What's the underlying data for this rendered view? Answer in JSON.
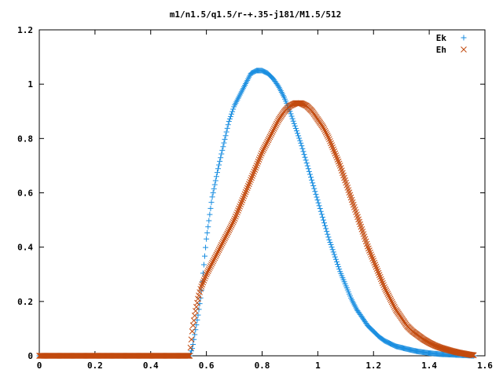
{
  "chart_data": {
    "type": "scatter",
    "title": "m1/n1.5/q1.5/r-+.35-j181/M1.5/512",
    "xlabel": "",
    "ylabel": "",
    "xlim": [
      0,
      1.6
    ],
    "ylim": [
      0,
      1.2
    ],
    "x_ticks": [
      "0",
      "0.2",
      "0.4",
      "0.6",
      "0.8",
      "1",
      "1.2",
      "1.4",
      "1.6"
    ],
    "y_ticks": [
      "0",
      "0.2",
      "0.4",
      "0.6",
      "0.8",
      "1",
      "1.2"
    ],
    "grid": false,
    "legend_position": "top-right",
    "series": [
      {
        "name": "Ek",
        "marker": "plus",
        "color": "#1a8ee0",
        "x": [
          0,
          0.05,
          0.1,
          0.15,
          0.2,
          0.25,
          0.3,
          0.35,
          0.4,
          0.45,
          0.5,
          0.54,
          0.55,
          0.56,
          0.57,
          0.58,
          0.6,
          0.62,
          0.64,
          0.66,
          0.68,
          0.7,
          0.72,
          0.74,
          0.76,
          0.78,
          0.8,
          0.82,
          0.84,
          0.86,
          0.88,
          0.9,
          0.92,
          0.94,
          0.96,
          0.98,
          1.0,
          1.02,
          1.04,
          1.06,
          1.08,
          1.1,
          1.12,
          1.14,
          1.16,
          1.18,
          1.2,
          1.22,
          1.24,
          1.26,
          1.28,
          1.3,
          1.32,
          1.34,
          1.36,
          1.38,
          1.4,
          1.42,
          1.44,
          1.46,
          1.48,
          1.5,
          1.52,
          1.54,
          1.56
        ],
        "y": [
          0,
          0,
          0,
          0,
          0,
          0,
          0,
          0,
          0,
          0,
          0,
          0,
          0.03,
          0.09,
          0.15,
          0.22,
          0.43,
          0.58,
          0.68,
          0.77,
          0.86,
          0.92,
          0.96,
          1.0,
          1.04,
          1.05,
          1.05,
          1.04,
          1.02,
          0.99,
          0.95,
          0.9,
          0.84,
          0.78,
          0.71,
          0.64,
          0.57,
          0.5,
          0.43,
          0.37,
          0.31,
          0.26,
          0.21,
          0.17,
          0.14,
          0.11,
          0.09,
          0.07,
          0.055,
          0.045,
          0.035,
          0.03,
          0.025,
          0.02,
          0.016,
          0.013,
          0.01,
          0.008,
          0.006,
          0.005,
          0.004,
          0.003,
          0.002,
          0.001,
          0.0
        ]
      },
      {
        "name": "Eh",
        "marker": "x",
        "color": "#c24a0e",
        "x": [
          0,
          0.05,
          0.1,
          0.15,
          0.2,
          0.25,
          0.3,
          0.35,
          0.4,
          0.45,
          0.5,
          0.54,
          0.55,
          0.56,
          0.57,
          0.58,
          0.6,
          0.62,
          0.64,
          0.66,
          0.68,
          0.7,
          0.72,
          0.74,
          0.76,
          0.78,
          0.8,
          0.82,
          0.84,
          0.86,
          0.88,
          0.9,
          0.92,
          0.94,
          0.96,
          0.98,
          1.0,
          1.02,
          1.04,
          1.06,
          1.08,
          1.1,
          1.12,
          1.14,
          1.16,
          1.18,
          1.2,
          1.22,
          1.24,
          1.26,
          1.28,
          1.3,
          1.32,
          1.34,
          1.36,
          1.38,
          1.4,
          1.42,
          1.44,
          1.46,
          1.48,
          1.5,
          1.52,
          1.54,
          1.56
        ],
        "y": [
          0,
          0,
          0,
          0,
          0,
          0,
          0,
          0,
          0,
          0,
          0,
          0,
          0.1,
          0.16,
          0.21,
          0.25,
          0.3,
          0.34,
          0.38,
          0.42,
          0.46,
          0.5,
          0.55,
          0.6,
          0.65,
          0.7,
          0.75,
          0.79,
          0.83,
          0.87,
          0.9,
          0.92,
          0.93,
          0.93,
          0.92,
          0.9,
          0.87,
          0.84,
          0.8,
          0.75,
          0.7,
          0.64,
          0.58,
          0.52,
          0.46,
          0.4,
          0.35,
          0.3,
          0.25,
          0.21,
          0.17,
          0.14,
          0.11,
          0.09,
          0.075,
          0.06,
          0.048,
          0.038,
          0.03,
          0.024,
          0.018,
          0.013,
          0.009,
          0.005,
          0.002
        ]
      }
    ]
  }
}
